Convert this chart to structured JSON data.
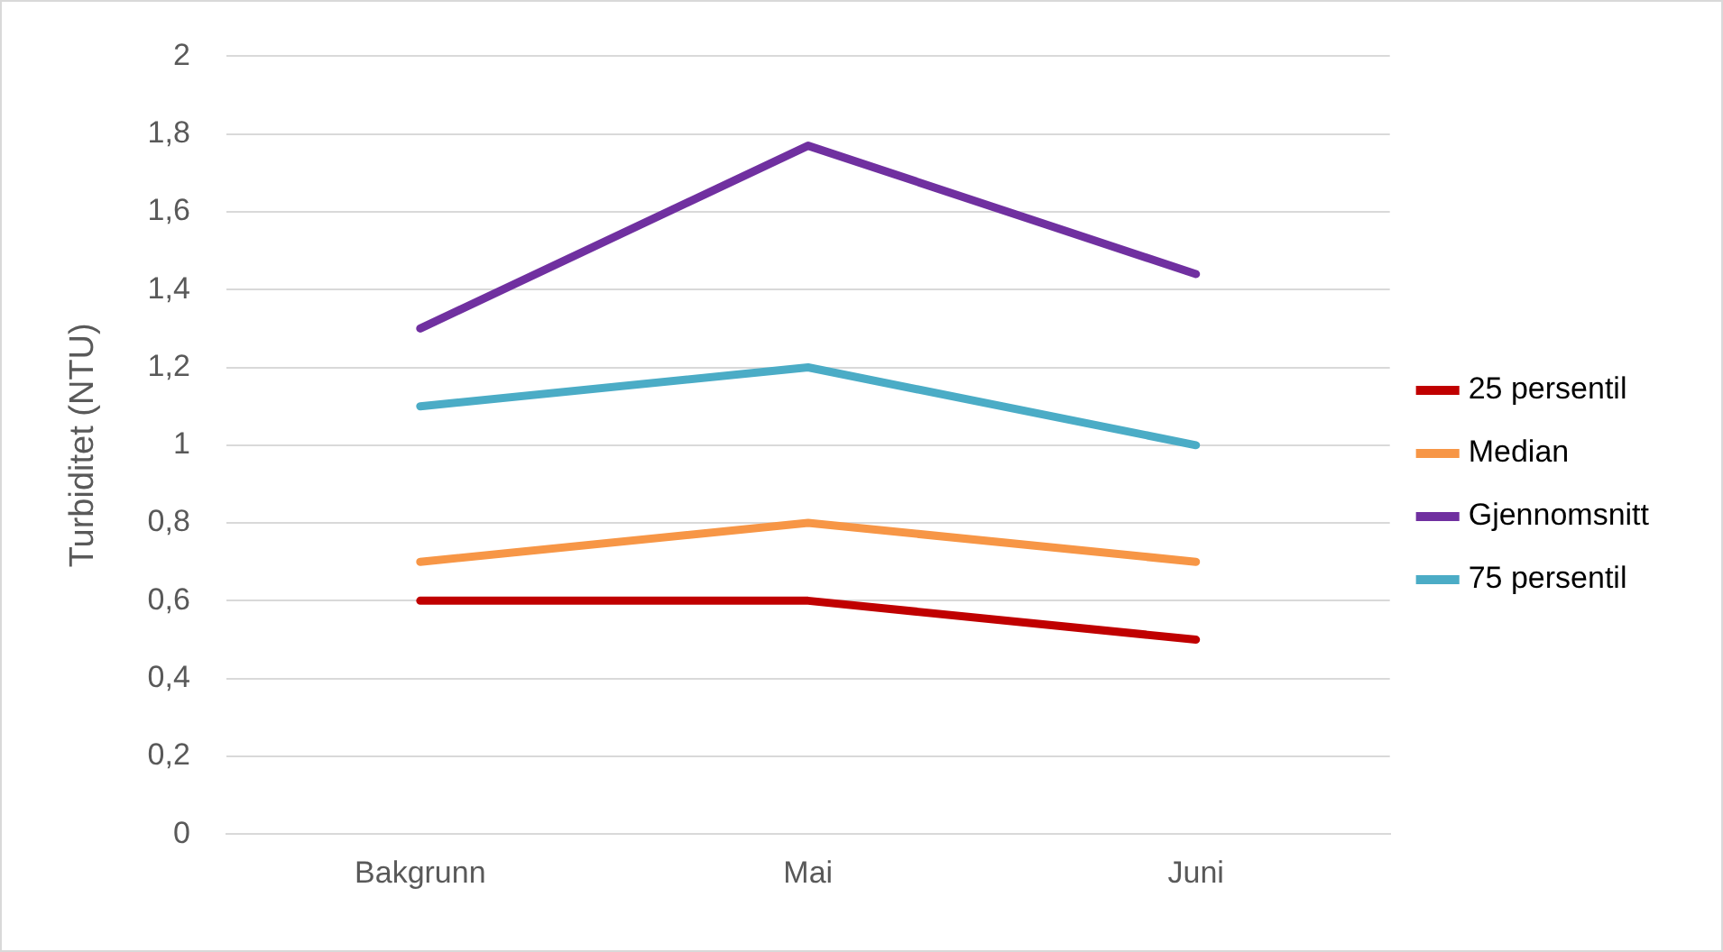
{
  "chart_data": {
    "type": "line",
    "ylabel": "Turbiditet (NTU)",
    "categories": [
      "Bakgrunn",
      "Mai",
      "Juni"
    ],
    "series": [
      {
        "name": "25 persentil",
        "color": "#c00000",
        "values": [
          0.6,
          0.6,
          0.5
        ]
      },
      {
        "name": "Median",
        "color": "#f79646",
        "values": [
          0.7,
          0.8,
          0.7
        ]
      },
      {
        "name": "Gjennomsnitt",
        "color": "#7030a0",
        "values": [
          1.3,
          1.77,
          1.44
        ]
      },
      {
        "name": "75 persentil",
        "color": "#4bacc6",
        "values": [
          1.1,
          1.2,
          1.0
        ]
      }
    ],
    "ylim": [
      0,
      2
    ],
    "yticks": [
      0,
      {
        "value": 0.2,
        "label": "0,2"
      },
      {
        "value": 0.4,
        "label": "0,4"
      },
      {
        "value": 0.6,
        "label": "0,6"
      },
      {
        "value": 0.8,
        "label": "0,8"
      },
      1,
      {
        "value": 1.2,
        "label": "1,2"
      },
      {
        "value": 1.4,
        "label": "1,4"
      },
      {
        "value": 1.6,
        "label": "1,6"
      },
      {
        "value": 1.8,
        "label": "1,8"
      },
      2
    ],
    "grid": "y",
    "legend": "right",
    "marker": "none",
    "line_style": "solid"
  }
}
